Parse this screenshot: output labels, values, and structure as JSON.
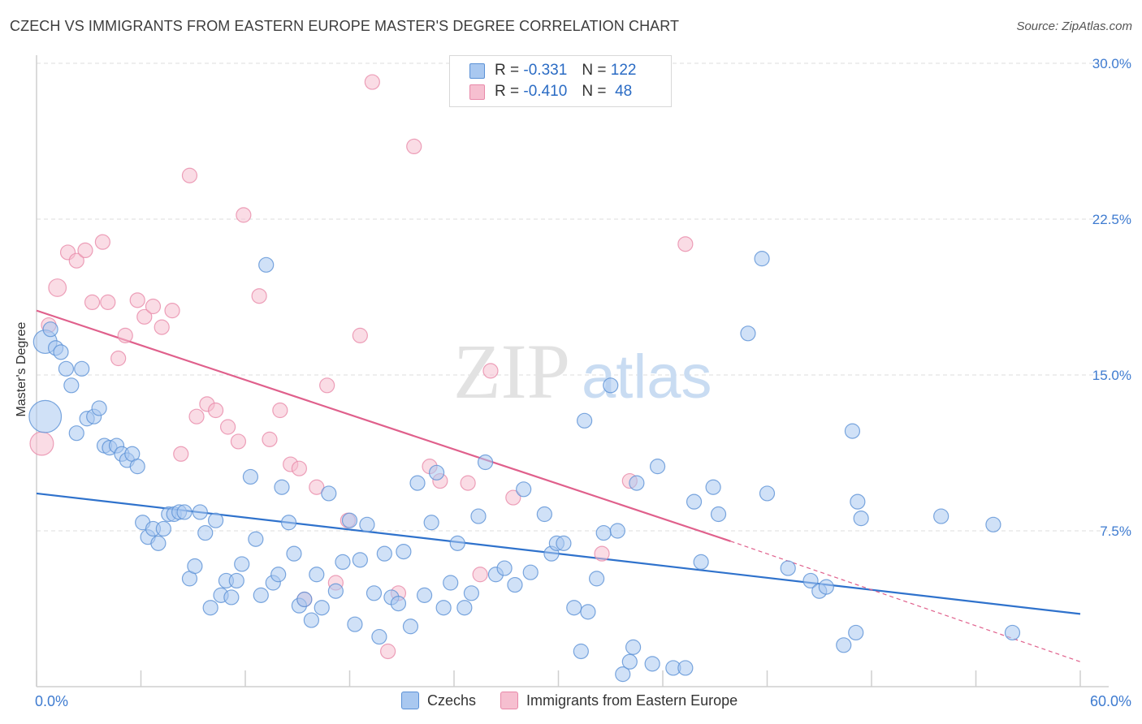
{
  "title": "CZECH VS IMMIGRANTS FROM EASTERN EUROPE MASTER'S DEGREE CORRELATION CHART",
  "source": "Source: ZipAtlas.com",
  "watermark": {
    "zip": "ZIP",
    "atlas": "atlas"
  },
  "legend": {
    "rows": [
      {
        "r_label": "R =",
        "r_value": "-0.331",
        "n_label": "N =",
        "n_value": "122"
      },
      {
        "r_label": "R =",
        "r_value": "-0.410",
        "n_label": "N =",
        "n_value": "48"
      }
    ]
  },
  "bottom_legend": [
    "Czechs",
    "Immigrants from Eastern Europe"
  ],
  "colors": {
    "blue_fill": "#a9c8f0",
    "blue_stroke": "#5b91d6",
    "blue_line": "#2f72cc",
    "pink_fill": "#f6bfd0",
    "pink_stroke": "#e889a9",
    "pink_line": "#e0608c",
    "tick_label": "#3e7bd0",
    "grid": "#dedede"
  },
  "chart_data": {
    "type": "scatter",
    "title": "CZECH VS IMMIGRANTS FROM EASTERN EUROPE MASTER'S DEGREE CORRELATION CHART",
    "xlabel": "",
    "ylabel": "Master's Degree",
    "xlim": [
      0,
      60
    ],
    "ylim": [
      0,
      30
    ],
    "x_tick_labels": [
      "0.0%",
      "60.0%"
    ],
    "y_ticks": [
      7.5,
      15.0,
      22.5,
      30.0
    ],
    "y_tick_labels": [
      "7.5%",
      "15.0%",
      "22.5%",
      "30.0%"
    ],
    "grid": true,
    "legend_position": "top-center",
    "series": [
      {
        "name": "Czechs",
        "r": -0.331,
        "n": 122,
        "trend": {
          "x0": 0,
          "y0": 9.3,
          "x1": 60,
          "y1": 3.5
        },
        "points": [
          [
            0.5,
            16.6,
            1.6
          ],
          [
            0.5,
            13.0,
            2.2
          ],
          [
            0.8,
            17.2,
            1
          ],
          [
            1.1,
            16.3,
            1
          ],
          [
            1.4,
            16.1,
            1
          ],
          [
            1.7,
            15.3,
            1
          ],
          [
            2.0,
            14.5,
            1
          ],
          [
            2.3,
            12.2,
            1
          ],
          [
            2.6,
            15.3,
            1
          ],
          [
            2.9,
            12.9,
            1
          ],
          [
            3.3,
            13.0,
            1
          ],
          [
            3.6,
            13.4,
            1
          ],
          [
            3.9,
            11.6,
            1
          ],
          [
            4.2,
            11.5,
            1
          ],
          [
            4.6,
            11.6,
            1
          ],
          [
            4.9,
            11.2,
            1
          ],
          [
            5.2,
            10.9,
            1
          ],
          [
            5.5,
            11.2,
            1
          ],
          [
            5.8,
            10.6,
            1
          ],
          [
            6.1,
            7.9,
            1
          ],
          [
            6.4,
            7.2,
            1
          ],
          [
            6.7,
            7.6,
            1
          ],
          [
            7.0,
            6.9,
            1
          ],
          [
            7.3,
            7.6,
            1
          ],
          [
            7.6,
            8.3,
            1
          ],
          [
            7.9,
            8.3,
            1
          ],
          [
            8.2,
            8.4,
            1
          ],
          [
            8.5,
            8.4,
            1
          ],
          [
            8.8,
            5.2,
            1
          ],
          [
            9.1,
            5.8,
            1
          ],
          [
            9.4,
            8.4,
            1
          ],
          [
            9.7,
            7.4,
            1
          ],
          [
            10.0,
            3.8,
            1
          ],
          [
            10.3,
            8.0,
            1
          ],
          [
            10.6,
            4.4,
            1
          ],
          [
            10.9,
            5.1,
            1
          ],
          [
            11.2,
            4.3,
            1
          ],
          [
            11.5,
            5.1,
            1
          ],
          [
            11.8,
            5.9,
            1
          ],
          [
            12.3,
            10.1,
            1
          ],
          [
            12.6,
            7.1,
            1
          ],
          [
            12.9,
            4.4,
            1
          ],
          [
            13.2,
            20.3,
            1
          ],
          [
            13.6,
            5.0,
            1
          ],
          [
            13.9,
            5.4,
            1
          ],
          [
            14.1,
            9.6,
            1
          ],
          [
            14.5,
            7.9,
            1
          ],
          [
            14.8,
            6.4,
            1
          ],
          [
            15.1,
            3.9,
            1
          ],
          [
            15.4,
            4.2,
            1
          ],
          [
            15.8,
            3.2,
            1
          ],
          [
            16.1,
            5.4,
            1
          ],
          [
            16.4,
            3.8,
            1
          ],
          [
            16.8,
            9.3,
            1
          ],
          [
            17.2,
            4.6,
            1
          ],
          [
            17.6,
            6.0,
            1
          ],
          [
            18.0,
            8.0,
            1
          ],
          [
            18.3,
            3.0,
            1
          ],
          [
            18.6,
            6.1,
            1
          ],
          [
            19.0,
            7.8,
            1
          ],
          [
            19.4,
            4.5,
            1
          ],
          [
            19.7,
            2.4,
            1
          ],
          [
            20.0,
            6.4,
            1
          ],
          [
            20.4,
            4.3,
            1
          ],
          [
            20.8,
            4.0,
            1
          ],
          [
            21.1,
            6.5,
            1
          ],
          [
            21.5,
            2.9,
            1
          ],
          [
            21.9,
            9.8,
            1
          ],
          [
            22.3,
            4.4,
            1
          ],
          [
            22.7,
            7.9,
            1
          ],
          [
            23.0,
            10.3,
            1
          ],
          [
            23.4,
            3.8,
            1
          ],
          [
            23.8,
            5.0,
            1
          ],
          [
            24.2,
            6.9,
            1
          ],
          [
            24.6,
            3.8,
            1
          ],
          [
            25.0,
            4.5,
            1
          ],
          [
            25.4,
            8.2,
            1
          ],
          [
            25.8,
            10.8,
            1
          ],
          [
            26.4,
            5.4,
            1
          ],
          [
            26.9,
            5.7,
            1
          ],
          [
            27.5,
            4.9,
            1
          ],
          [
            28.0,
            9.5,
            1
          ],
          [
            28.4,
            5.5,
            1
          ],
          [
            29.2,
            8.3,
            1
          ],
          [
            29.6,
            6.4,
            1
          ],
          [
            29.9,
            6.9,
            1
          ],
          [
            30.3,
            6.9,
            1
          ],
          [
            30.9,
            3.8,
            1
          ],
          [
            31.3,
            1.7,
            1
          ],
          [
            31.5,
            12.8,
            1
          ],
          [
            31.7,
            3.6,
            1
          ],
          [
            32.2,
            5.2,
            1
          ],
          [
            32.6,
            7.4,
            1
          ],
          [
            33.0,
            14.5,
            1
          ],
          [
            33.4,
            7.5,
            1
          ],
          [
            33.7,
            0.6,
            1
          ],
          [
            34.1,
            1.2,
            1
          ],
          [
            34.3,
            1.9,
            1
          ],
          [
            34.5,
            9.8,
            1
          ],
          [
            35.4,
            1.1,
            1
          ],
          [
            35.7,
            10.6,
            1
          ],
          [
            36.6,
            0.9,
            1
          ],
          [
            37.3,
            0.9,
            1
          ],
          [
            37.8,
            8.9,
            1
          ],
          [
            38.2,
            6.0,
            1
          ],
          [
            38.9,
            9.6,
            1
          ],
          [
            39.2,
            8.3,
            1
          ],
          [
            40.9,
            17.0,
            1
          ],
          [
            41.7,
            20.6,
            1
          ],
          [
            43.2,
            5.7,
            1
          ],
          [
            44.5,
            5.1,
            1
          ],
          [
            45.0,
            4.6,
            1
          ],
          [
            45.4,
            4.8,
            1
          ],
          [
            46.4,
            2.0,
            1
          ],
          [
            46.9,
            12.3,
            1
          ],
          [
            47.1,
            2.6,
            1
          ],
          [
            47.2,
            8.9,
            1
          ],
          [
            47.4,
            8.1,
            1
          ],
          [
            52.0,
            8.2,
            1
          ],
          [
            55.0,
            7.8,
            1
          ],
          [
            56.1,
            2.6,
            1
          ],
          [
            42.0,
            9.3,
            1
          ]
        ]
      },
      {
        "name": "Immigrants from Eastern Europe",
        "r": -0.41,
        "n": 48,
        "trend": {
          "x0": 0,
          "y0": 18.1,
          "x1": 39.9,
          "y1": 7.0,
          "dash_x1": 60,
          "dash_y1": 1.2
        },
        "points": [
          [
            0.3,
            11.7,
            1.6
          ],
          [
            0.7,
            17.4,
            1
          ],
          [
            1.2,
            19.2,
            1.2
          ],
          [
            1.8,
            20.9,
            1
          ],
          [
            2.3,
            20.5,
            1
          ],
          [
            2.8,
            21.0,
            1
          ],
          [
            3.2,
            18.5,
            1
          ],
          [
            3.8,
            21.4,
            1
          ],
          [
            4.1,
            18.5,
            1
          ],
          [
            4.7,
            15.8,
            1
          ],
          [
            5.1,
            16.9,
            1
          ],
          [
            5.8,
            18.6,
            1
          ],
          [
            6.2,
            17.8,
            1
          ],
          [
            6.7,
            18.3,
            1
          ],
          [
            7.2,
            17.3,
            1
          ],
          [
            7.8,
            18.1,
            1
          ],
          [
            8.3,
            11.2,
            1
          ],
          [
            8.8,
            24.6,
            1
          ],
          [
            9.2,
            13.0,
            1
          ],
          [
            9.8,
            13.6,
            1
          ],
          [
            10.3,
            13.3,
            1
          ],
          [
            11.0,
            12.5,
            1
          ],
          [
            11.6,
            11.8,
            1
          ],
          [
            11.9,
            22.7,
            1
          ],
          [
            12.8,
            18.8,
            1
          ],
          [
            13.4,
            11.9,
            1
          ],
          [
            14.0,
            13.3,
            1
          ],
          [
            14.6,
            10.7,
            1
          ],
          [
            15.1,
            10.5,
            1
          ],
          [
            15.4,
            4.2,
            1
          ],
          [
            16.1,
            9.6,
            1
          ],
          [
            16.7,
            14.5,
            1
          ],
          [
            17.2,
            5.0,
            1
          ],
          [
            17.9,
            8.0,
            1
          ],
          [
            18.6,
            16.9,
            1
          ],
          [
            19.3,
            29.1,
            1
          ],
          [
            20.2,
            1.7,
            1
          ],
          [
            20.8,
            4.5,
            1
          ],
          [
            21.7,
            26.0,
            1
          ],
          [
            22.6,
            10.6,
            1
          ],
          [
            23.2,
            9.9,
            1
          ],
          [
            24.8,
            9.8,
            1
          ],
          [
            25.5,
            5.4,
            1
          ],
          [
            26.1,
            15.2,
            1
          ],
          [
            27.4,
            9.1,
            1
          ],
          [
            32.5,
            6.4,
            1
          ],
          [
            34.1,
            9.9,
            1
          ],
          [
            37.3,
            21.3,
            1
          ]
        ]
      }
    ]
  }
}
